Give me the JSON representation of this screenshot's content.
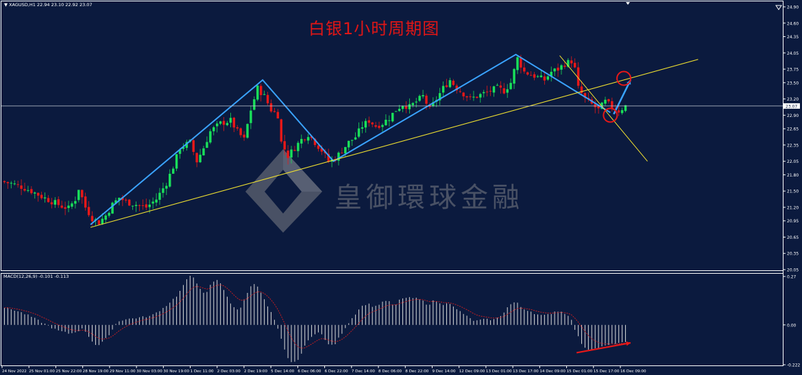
{
  "header": {
    "symbol_info": "▼ XAGUSD,H1  22.94 23.10 22.92 23.07",
    "title": "白银1小时周期图"
  },
  "watermark": {
    "text": "皇御環球金融",
    "icon": "diamond-logo-icon"
  },
  "colors": {
    "background": "#0b1a3e",
    "bull": "#19e05a",
    "bear": "#e81818",
    "trend_blue": "#3aa3ff",
    "support_yellow": "#f2e230",
    "signal_red": "#e81818",
    "macd_hist": "#d9d9d9",
    "macd_signal": "#d81e1e"
  },
  "chart_data": [
    {
      "type": "line",
      "name": "price",
      "title": "白银1小时周期图",
      "ylim": [
        20.05,
        24.9
      ],
      "y_ticks": [
        "24.90",
        "24.60",
        "24.35",
        "24.05",
        "23.75",
        "23.50",
        "23.20",
        "22.90",
        "22.65",
        "22.35",
        "22.05",
        "21.80",
        "21.50",
        "21.20",
        "20.95",
        "20.65",
        "20.35",
        "20.05"
      ],
      "current_price": "23.07",
      "x_labels": [
        "24 Nov 2022",
        "25 Nov 01:00",
        "25 Nov 22:00",
        "28 Nov 19:00",
        "29 Nov 11:00",
        "30 Nov 03:00",
        "30 Nov 19:00",
        "1 Dec 11:00",
        "2 Dec 03:00",
        "2 Dec 19:00",
        "5 Dec 14:00",
        "6 Dec 06:00",
        "6 Dec 22:00",
        "7 Dec 14:00",
        "8 Dec 06:00",
        "8 Dec 22:00",
        "9 Dec 14:00",
        "12 Dec 09:00",
        "13 Dec 01:00",
        "13 Dec 17:00",
        "14 Dec 09:00",
        "15 Dec 01:00",
        "15 Dec 17:00",
        "16 Dec 09:00"
      ],
      "bars_x": [
        0,
        185
      ],
      "price_anchors": [
        [
          0,
          21.68
        ],
        [
          3,
          21.64
        ],
        [
          6,
          21.58
        ],
        [
          9,
          21.5
        ],
        [
          12,
          21.4
        ],
        [
          15,
          21.31
        ],
        [
          18,
          21.22
        ],
        [
          20,
          21.18
        ],
        [
          22,
          21.35
        ],
        [
          23,
          21.55
        ],
        [
          25,
          21.2
        ],
        [
          27,
          21.0
        ],
        [
          29,
          20.92
        ],
        [
          31,
          21.05
        ],
        [
          33,
          21.25
        ],
        [
          35,
          21.38
        ],
        [
          37,
          21.3
        ],
        [
          40,
          21.25
        ],
        [
          43,
          21.2
        ],
        [
          46,
          21.35
        ],
        [
          49,
          21.65
        ],
        [
          51,
          21.95
        ],
        [
          53,
          22.3
        ],
        [
          56,
          22.4
        ],
        [
          58,
          22.05
        ],
        [
          60,
          22.3
        ],
        [
          62,
          22.6
        ],
        [
          65,
          22.75
        ],
        [
          68,
          22.8
        ],
        [
          70,
          22.6
        ],
        [
          72,
          22.45
        ],
        [
          74,
          23.0
        ],
        [
          76,
          23.4
        ],
        [
          78,
          23.25
        ],
        [
          80,
          23.0
        ],
        [
          82,
          22.9
        ],
        [
          83,
          22.4
        ],
        [
          85,
          22.15
        ],
        [
          87,
          22.3
        ],
        [
          89,
          22.45
        ],
        [
          91,
          22.55
        ],
        [
          93,
          22.4
        ],
        [
          95,
          22.25
        ],
        [
          97,
          22.05
        ],
        [
          99,
          22.1
        ],
        [
          101,
          22.25
        ],
        [
          103,
          22.4
        ],
        [
          105,
          22.5
        ],
        [
          107,
          22.7
        ],
        [
          109,
          22.8
        ],
        [
          111,
          22.7
        ],
        [
          113,
          22.75
        ],
        [
          115,
          22.85
        ],
        [
          117,
          23.0
        ],
        [
          119,
          23.1
        ],
        [
          121,
          23.05
        ],
        [
          123,
          23.15
        ],
        [
          125,
          23.25
        ],
        [
          127,
          23.0
        ],
        [
          129,
          23.2
        ],
        [
          131,
          23.4
        ],
        [
          133,
          23.55
        ],
        [
          135,
          23.4
        ],
        [
          137,
          23.3
        ],
        [
          139,
          23.2
        ],
        [
          141,
          23.25
        ],
        [
          143,
          23.3
        ],
        [
          145,
          23.35
        ],
        [
          147,
          23.4
        ],
        [
          149,
          23.35
        ],
        [
          151,
          23.5
        ],
        [
          153,
          23.95
        ],
        [
          155,
          23.7
        ],
        [
          157,
          23.65
        ],
        [
          159,
          23.6
        ],
        [
          161,
          23.55
        ],
        [
          163,
          23.7
        ],
        [
          165,
          23.75
        ],
        [
          167,
          23.85
        ],
        [
          169,
          23.9
        ],
        [
          170,
          23.75
        ],
        [
          171,
          23.4
        ],
        [
          173,
          23.2
        ],
        [
          175,
          23.1
        ],
        [
          177,
          23.0
        ],
        [
          179,
          23.15
        ],
        [
          181,
          23.05
        ],
        [
          183,
          22.98
        ],
        [
          185,
          23.07
        ]
      ],
      "series": [
        {
          "name": "",
          "type": "trend-zigzag",
          "points": [
            [
              26,
              20.88
            ],
            [
              77,
              23.55
            ],
            [
              98,
              22.05
            ],
            [
              152,
              24.02
            ],
            [
              180,
              22.95
            ]
          ]
        },
        {
          "name": "",
          "type": "support-line",
          "points": [
            [
              26,
              20.83
            ],
            [
              206,
              23.93
            ]
          ]
        },
        {
          "name": "",
          "type": "resistance-line",
          "points": [
            [
              165,
              24.0
            ],
            [
              191,
              22.05
            ]
          ]
        },
        {
          "name": "",
          "type": "projection-arrow",
          "points": [
            [
              181,
              22.92
            ],
            [
              186,
              23.55
            ]
          ]
        }
      ],
      "circles": [
        [
          180,
          22.9
        ],
        [
          184,
          23.58
        ]
      ]
    },
    {
      "type": "bar",
      "name": "macd",
      "label": "MACD(12,26,9) -0.101 -0.113",
      "ylim": [
        -0.222,
        0.27
      ],
      "y_ticks": [
        "0.27",
        "0.00",
        "-0.222"
      ],
      "hist_anchors": [
        [
          0,
          0.1
        ],
        [
          4,
          0.08
        ],
        [
          8,
          0.05
        ],
        [
          12,
          0.01
        ],
        [
          16,
          -0.03
        ],
        [
          20,
          -0.05
        ],
        [
          24,
          -0.02
        ],
        [
          26,
          -0.08
        ],
        [
          28,
          -0.12
        ],
        [
          30,
          -0.09
        ],
        [
          32,
          -0.04
        ],
        [
          34,
          0.02
        ],
        [
          36,
          0.03
        ],
        [
          40,
          0.04
        ],
        [
          44,
          0.05
        ],
        [
          48,
          0.1
        ],
        [
          52,
          0.17
        ],
        [
          54,
          0.24
        ],
        [
          56,
          0.28
        ],
        [
          58,
          0.22
        ],
        [
          60,
          0.16
        ],
        [
          62,
          0.24
        ],
        [
          64,
          0.25
        ],
        [
          66,
          0.18
        ],
        [
          68,
          0.1
        ],
        [
          70,
          0.08
        ],
        [
          72,
          0.16
        ],
        [
          74,
          0.24
        ],
        [
          76,
          0.2
        ],
        [
          78,
          0.12
        ],
        [
          80,
          0.05
        ],
        [
          82,
          -0.05
        ],
        [
          84,
          -0.17
        ],
        [
          86,
          -0.22
        ],
        [
          88,
          -0.18
        ],
        [
          90,
          -0.1
        ],
        [
          92,
          -0.05
        ],
        [
          94,
          -0.04
        ],
        [
          96,
          -0.1
        ],
        [
          98,
          -0.12
        ],
        [
          100,
          -0.06
        ],
        [
          102,
          0.0
        ],
        [
          104,
          0.05
        ],
        [
          106,
          0.1
        ],
        [
          108,
          0.12
        ],
        [
          110,
          0.1
        ],
        [
          112,
          0.12
        ],
        [
          114,
          0.14
        ],
        [
          116,
          0.1
        ],
        [
          118,
          0.15
        ],
        [
          120,
          0.15
        ],
        [
          122,
          0.15
        ],
        [
          124,
          0.14
        ],
        [
          126,
          0.11
        ],
        [
          128,
          0.14
        ],
        [
          130,
          0.11
        ],
        [
          132,
          0.13
        ],
        [
          134,
          0.09
        ],
        [
          136,
          0.07
        ],
        [
          138,
          0.04
        ],
        [
          140,
          0.02
        ],
        [
          142,
          0.03
        ],
        [
          144,
          0.03
        ],
        [
          146,
          0.03
        ],
        [
          148,
          0.06
        ],
        [
          150,
          0.11
        ],
        [
          152,
          0.13
        ],
        [
          154,
          0.09
        ],
        [
          156,
          0.08
        ],
        [
          158,
          0.06
        ],
        [
          160,
          0.05
        ],
        [
          162,
          0.06
        ],
        [
          164,
          0.08
        ],
        [
          166,
          0.07
        ],
        [
          168,
          0.05
        ],
        [
          170,
          -0.05
        ],
        [
          172,
          -0.12
        ],
        [
          174,
          -0.14
        ],
        [
          176,
          -0.13
        ],
        [
          178,
          -0.12
        ],
        [
          180,
          -0.11
        ],
        [
          182,
          -0.1
        ],
        [
          185,
          -0.1
        ]
      ],
      "divergence_arrow": [
        [
          170,
          -0.155
        ],
        [
          186,
          -0.1
        ]
      ]
    }
  ]
}
